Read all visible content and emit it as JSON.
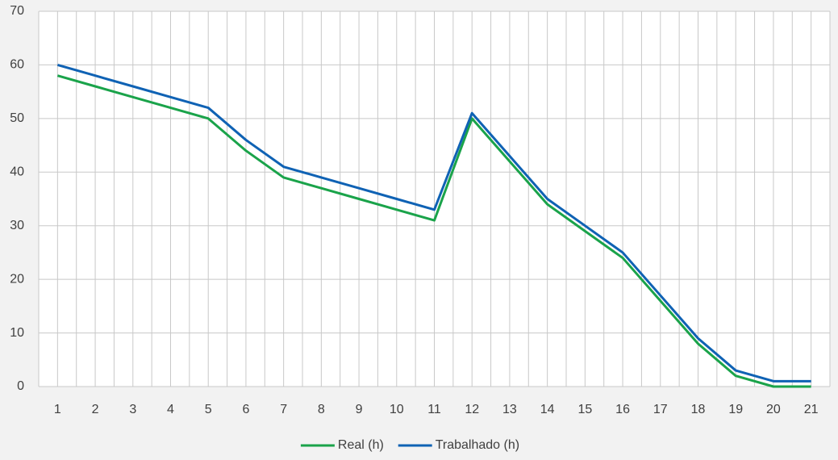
{
  "chart_data": {
    "type": "line",
    "categories": [
      "1",
      "2",
      "3",
      "4",
      "5",
      "6",
      "7",
      "8",
      "9",
      "10",
      "11",
      "12",
      "13",
      "14",
      "15",
      "16",
      "17",
      "18",
      "19",
      "20",
      "21"
    ],
    "series": [
      {
        "name": "Real (h)",
        "color": "#1aa34a",
        "values": [
          58,
          56,
          54,
          52,
          50,
          44,
          39,
          37,
          35,
          33,
          31,
          50,
          42,
          34,
          29,
          24,
          16,
          8,
          2,
          0,
          0
        ]
      },
      {
        "name": "Trabalhado (h)",
        "color": "#0f62b4",
        "values": [
          60,
          58,
          56,
          54,
          52,
          46,
          41,
          39,
          37,
          35,
          33,
          51,
          43,
          35,
          30,
          25,
          17,
          9,
          3,
          1,
          1
        ]
      }
    ],
    "ylim": [
      0,
      70
    ],
    "yticks": [
      0,
      10,
      20,
      30,
      40,
      50,
      60,
      70
    ],
    "grid": true,
    "legend": "bottom"
  }
}
